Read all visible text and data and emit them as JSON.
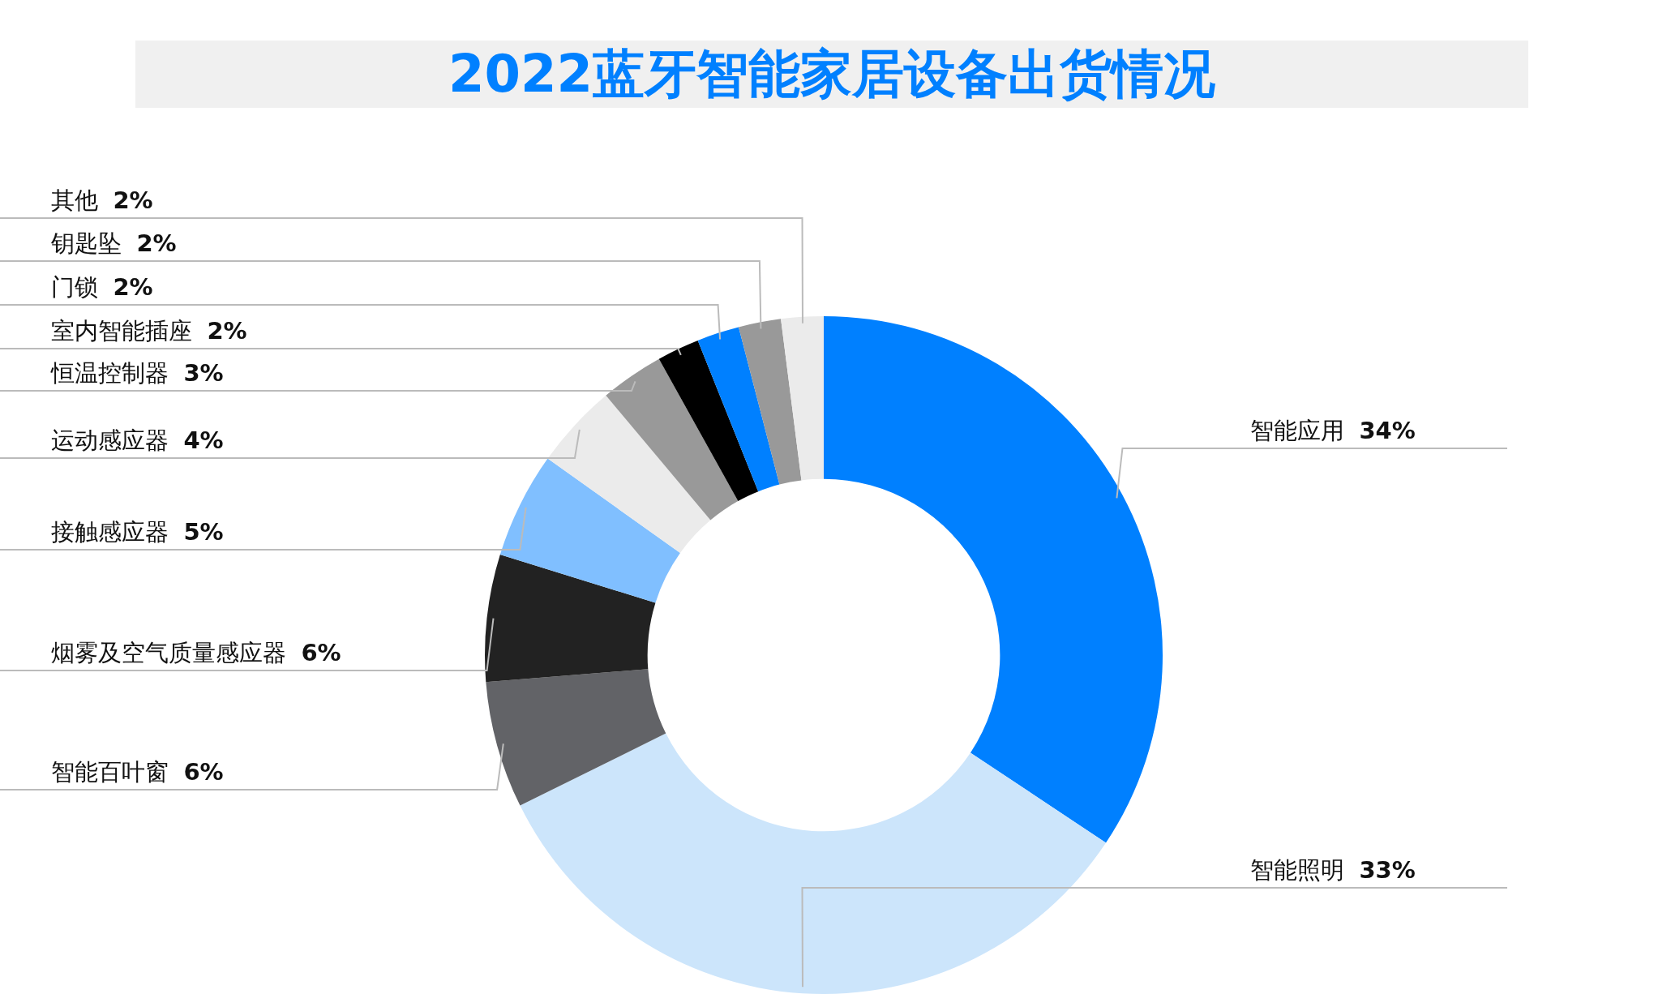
{
  "chart_data": {
    "type": "donut",
    "title": "2022蓝牙智能家居设备出货情况",
    "categories": [
      "智能应用",
      "智能照明",
      "智能百叶窗",
      "烟雾及空气质量感应器",
      "接触感应器",
      "运动感应器",
      "恒温控制器",
      "室内智能插座",
      "门锁",
      "钥匙坠",
      "其他"
    ],
    "values": [
      34,
      33,
      6,
      6,
      5,
      4,
      3,
      2,
      2,
      2,
      2
    ],
    "value_labels": [
      "34%",
      "33%",
      "6%",
      "6%",
      "5%",
      "4%",
      "3%",
      "2%",
      "2%",
      "2%",
      "2%"
    ],
    "colors": [
      "#0080ff",
      "#cce5fb",
      "#626367",
      "#222222",
      "#80bfff",
      "#ebebeb",
      "#999999",
      "#000000",
      "#0080ff",
      "#999999",
      "#ebebeb"
    ],
    "legend": false
  }
}
